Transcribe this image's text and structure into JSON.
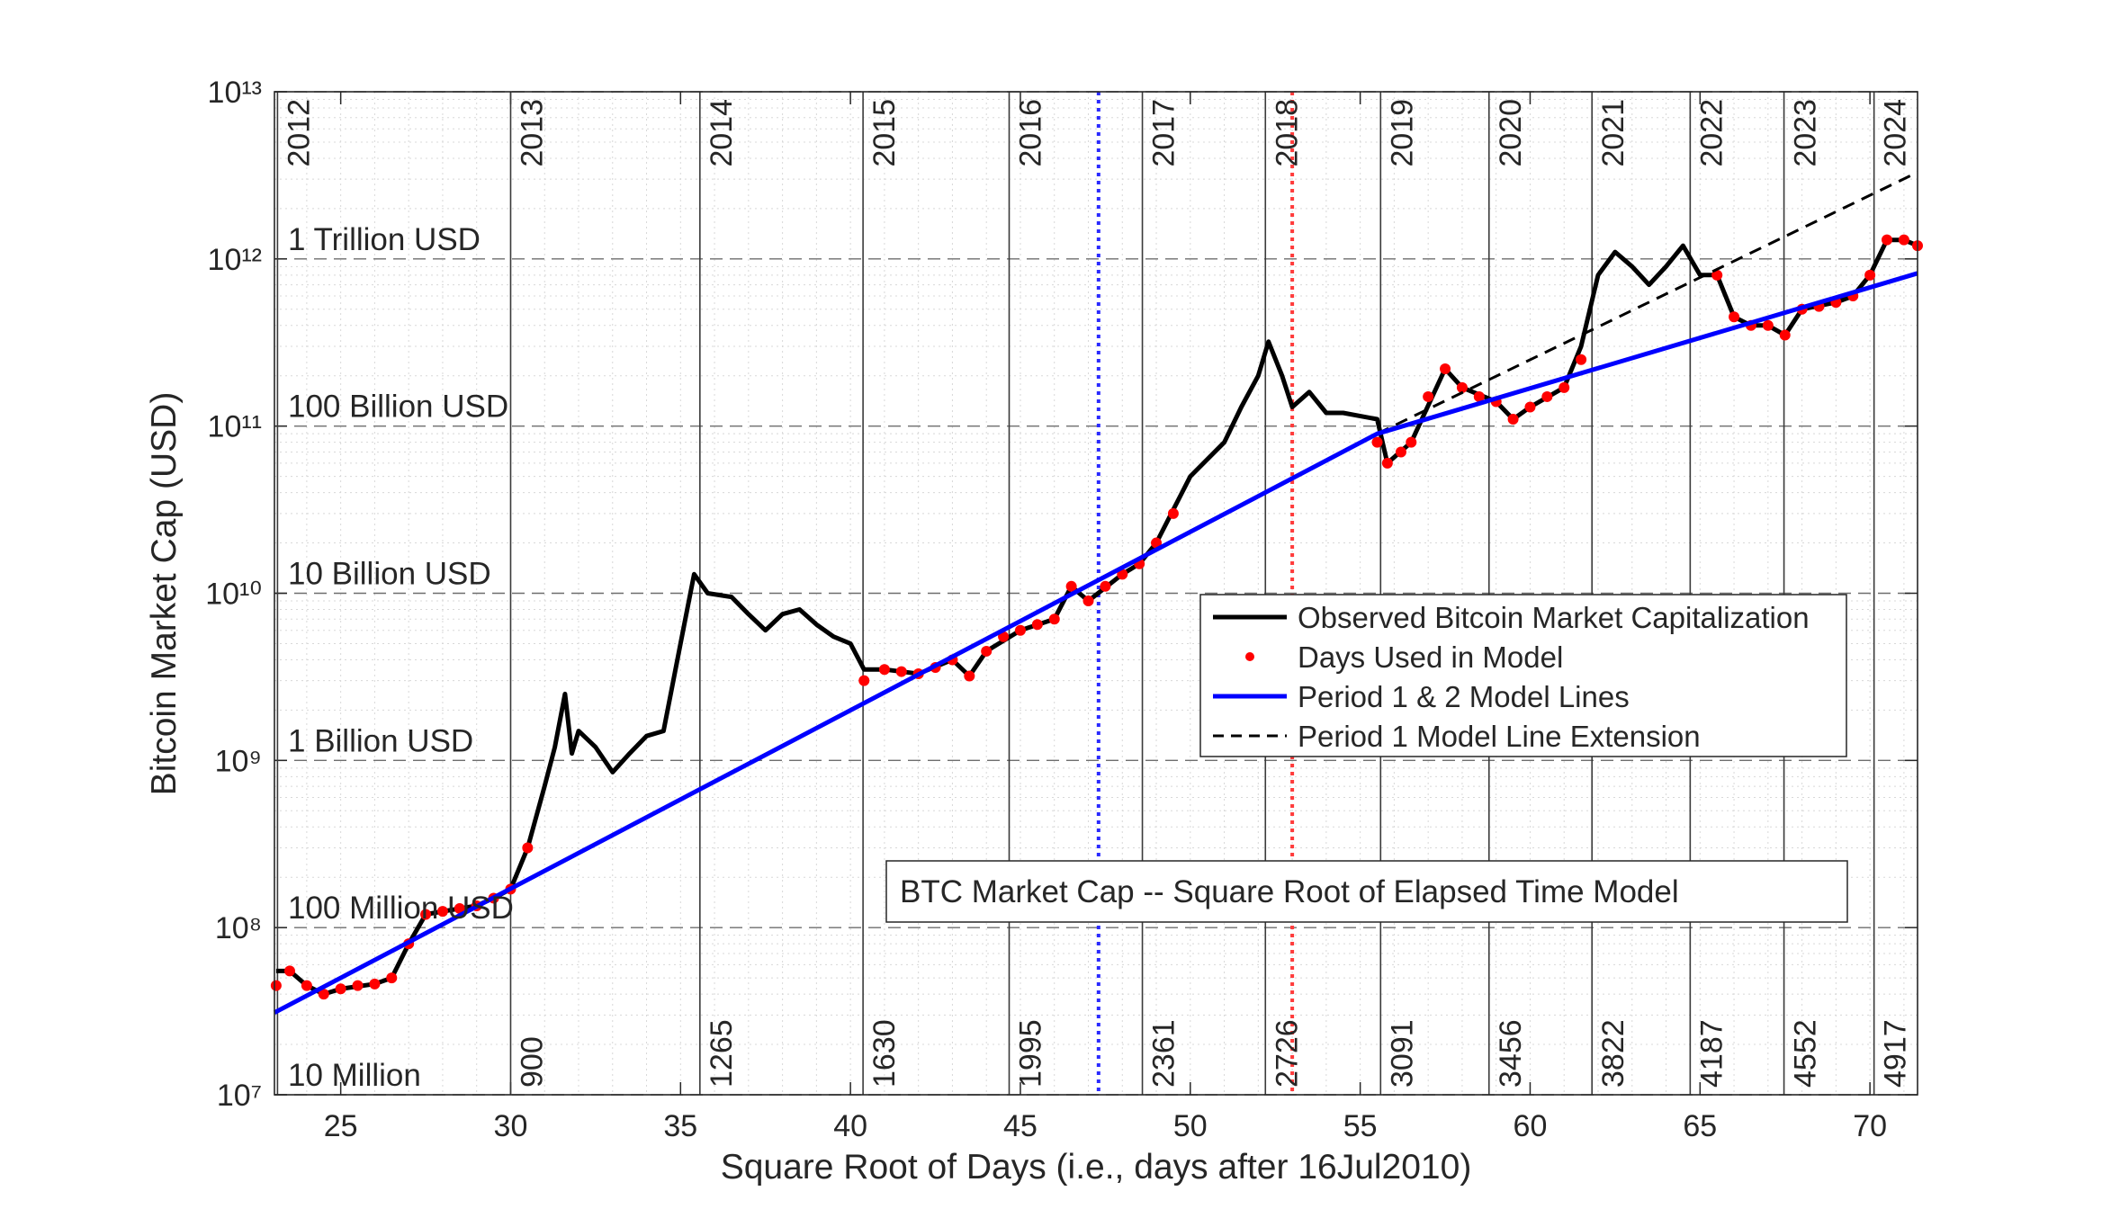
{
  "chart_data": {
    "type": "line",
    "title": "BTC Market Cap -- Square Root of Elapsed Time Model",
    "xlabel": "Square Root of Days (i.e., days after 16Jul2010)",
    "ylabel": "Bitcoin Market Cap (USD)",
    "xlim": [
      23.05,
      71.4
    ],
    "ylim": [
      10000000,
      10000000000000
    ],
    "log_y": true,
    "grid": true,
    "minor_grid": true,
    "xticks": [
      25,
      30,
      35,
      40,
      45,
      50,
      55,
      60,
      65,
      70
    ],
    "yticks": [
      {
        "value": 10000000,
        "label": "10⁷"
      },
      {
        "value": 100000000,
        "label": "10⁸"
      },
      {
        "value": 1000000000,
        "label": "10⁹"
      },
      {
        "value": 10000000000,
        "label": "10¹⁰"
      },
      {
        "value": 100000000000,
        "label": "10¹¹"
      },
      {
        "value": 1000000000000,
        "label": "10¹²"
      },
      {
        "value": 10000000000000,
        "label": "10¹³"
      }
    ],
    "level_labels": [
      {
        "label": "10 Million",
        "value": 10000000
      },
      {
        "label": "100 Million USD",
        "value": 100000000
      },
      {
        "label": "1 Billion USD",
        "value": 1000000000
      },
      {
        "label": "10 Billion USD",
        "value": 10000000000
      },
      {
        "label": "100 Billion USD",
        "value": 100000000000
      },
      {
        "label": "1 Trillion USD",
        "value": 1000000000000
      }
    ],
    "year_markers": [
      {
        "label": "2012",
        "x": 23.14
      },
      {
        "label": "2013",
        "x": 30.0,
        "days": 900
      },
      {
        "label": "2014",
        "x": 35.57,
        "days": 1265
      },
      {
        "label": "2015",
        "x": 40.37,
        "days": 1630
      },
      {
        "label": "2016",
        "x": 44.67,
        "days": 1995
      },
      {
        "label": "2017",
        "x": 48.59,
        "days": 2361
      },
      {
        "label": "2018",
        "x": 52.21,
        "days": 2726
      },
      {
        "label": "2019",
        "x": 55.6,
        "days": 3091
      },
      {
        "label": "2020",
        "x": 58.79,
        "days": 3456
      },
      {
        "label": "2021",
        "x": 61.82,
        "days": 3822
      },
      {
        "label": "2022",
        "x": 64.71,
        "days": 4187
      },
      {
        "label": "2023",
        "x": 67.47,
        "days": 4552
      },
      {
        "label": "2024",
        "x": 70.12,
        "days": 4917
      }
    ],
    "reference_lines": [
      {
        "x": 47.3,
        "color": "#2a2aff"
      },
      {
        "x": 53.0,
        "color": "#ff3b3b"
      }
    ],
    "series": [
      {
        "name": "Observed Bitcoin Market Capitalization",
        "color": "#000000",
        "style": "line",
        "x": [
          23.1,
          23.5,
          24,
          24.5,
          25,
          26,
          26.5,
          27,
          27.5,
          28,
          28.5,
          29,
          29.5,
          30,
          30.5,
          31,
          31.3,
          31.6,
          31.8,
          32,
          32.5,
          33,
          33.5,
          34,
          34.5,
          35,
          35.4,
          35.8,
          36.5,
          37,
          37.5,
          38,
          38.5,
          39,
          39.5,
          40,
          40.4,
          41,
          42,
          43,
          43.5,
          44,
          45,
          46,
          46.5,
          47,
          48,
          48.5,
          49,
          50,
          51,
          51.5,
          52,
          52.3,
          52.7,
          53,
          53.5,
          54,
          54.5,
          55.5,
          55.8,
          56.5,
          57.5,
          58,
          59,
          59.5,
          60,
          61,
          61.5,
          62,
          62.5,
          63,
          63.5,
          64,
          64.5,
          65,
          65.5,
          66,
          66.5,
          67,
          67.5,
          68,
          69,
          69.5,
          70,
          70.5,
          71,
          71.4
        ],
        "values": [
          55000000,
          55000000,
          45000000,
          40000000,
          43000000,
          46000000,
          50000000,
          80000000,
          120000000,
          125000000,
          130000000,
          135000000,
          150000000,
          170000000,
          300000000,
          700000000,
          1200000000,
          2500000000,
          1100000000,
          1500000000,
          1200000000,
          850000000,
          1100000000,
          1400000000,
          1500000000,
          5000000000,
          13000000000,
          10000000000,
          9500000000,
          7500000000,
          6000000000,
          7500000000,
          8000000000,
          6500000000,
          5500000000,
          5000000000,
          3500000000,
          3500000000,
          3300000000,
          4000000000,
          3200000000,
          4500000000,
          6000000000,
          7000000000,
          11000000000,
          9000000000,
          13000000000,
          15000000000,
          20000000000,
          50000000000,
          80000000000,
          130000000000,
          200000000000,
          320000000000,
          200000000000,
          130000000000,
          160000000000,
          120000000000,
          120000000000,
          110000000000,
          60000000000,
          80000000000,
          220000000000,
          170000000000,
          140000000000,
          110000000000,
          130000000000,
          170000000000,
          300000000000,
          800000000000,
          1100000000000,
          900000000000,
          700000000000,
          900000000000,
          1200000000000,
          800000000000,
          800000000000,
          450000000000,
          400000000000,
          400000000000,
          350000000000,
          500000000000,
          550000000000,
          600000000000,
          800000000000,
          1300000000000,
          1300000000000,
          1200000000000
        ]
      },
      {
        "name": "Days Used in Model",
        "color": "#ff0000",
        "style": "dots",
        "x": [
          23.1,
          23.5,
          24,
          24.5,
          25,
          25.5,
          26,
          26.5,
          27,
          27.5,
          28,
          28.5,
          29,
          29.5,
          30,
          30.5,
          40.4,
          41,
          41.5,
          42,
          42.5,
          43,
          43.5,
          44,
          44.5,
          45,
          45.5,
          46,
          46.5,
          47,
          47.5,
          48,
          48.5,
          49,
          49.5,
          55.5,
          55.8,
          56.2,
          56.5,
          57,
          57.5,
          58,
          58.5,
          59,
          59.5,
          60,
          60.5,
          61,
          61.5,
          65.5,
          66,
          66.5,
          67,
          67.5,
          68,
          68.5,
          69,
          69.5,
          70,
          70.5,
          71,
          71.4
        ],
        "values": [
          45000000,
          55000000,
          45000000,
          40000000,
          43000000,
          45000000,
          46000000,
          50000000,
          80000000,
          120000000,
          125000000,
          130000000,
          135000000,
          150000000,
          170000000,
          300000000,
          3000000000,
          3500000000,
          3400000000,
          3300000000,
          3600000000,
          4000000000,
          3200000000,
          4500000000,
          5500000000,
          6000000000,
          6500000000,
          7000000000,
          11000000000,
          9000000000,
          11000000000,
          13000000000,
          15000000000,
          20000000000,
          30000000000,
          80000000000,
          60000000000,
          70000000000,
          80000000000,
          150000000000,
          220000000000,
          170000000000,
          150000000000,
          140000000000,
          110000000000,
          130000000000,
          150000000000,
          170000000000,
          250000000000,
          800000000000,
          450000000000,
          400000000000,
          400000000000,
          350000000000,
          500000000000,
          520000000000,
          550000000000,
          600000000000,
          800000000000,
          1300000000000,
          1300000000000,
          1200000000000
        ]
      },
      {
        "name": "Period 1 & 2 Model Lines",
        "color": "#0000ff",
        "style": "line",
        "x": [
          23.05,
          55.5,
          71.4
        ],
        "values": [
          31000000,
          90000000000,
          820000000000
        ]
      },
      {
        "name": "Period 1 Model Line Extension",
        "color": "#000000",
        "style": "dashed",
        "x": [
          55.5,
          71.4
        ],
        "values": [
          90000000000,
          3300000000000
        ]
      }
    ]
  }
}
